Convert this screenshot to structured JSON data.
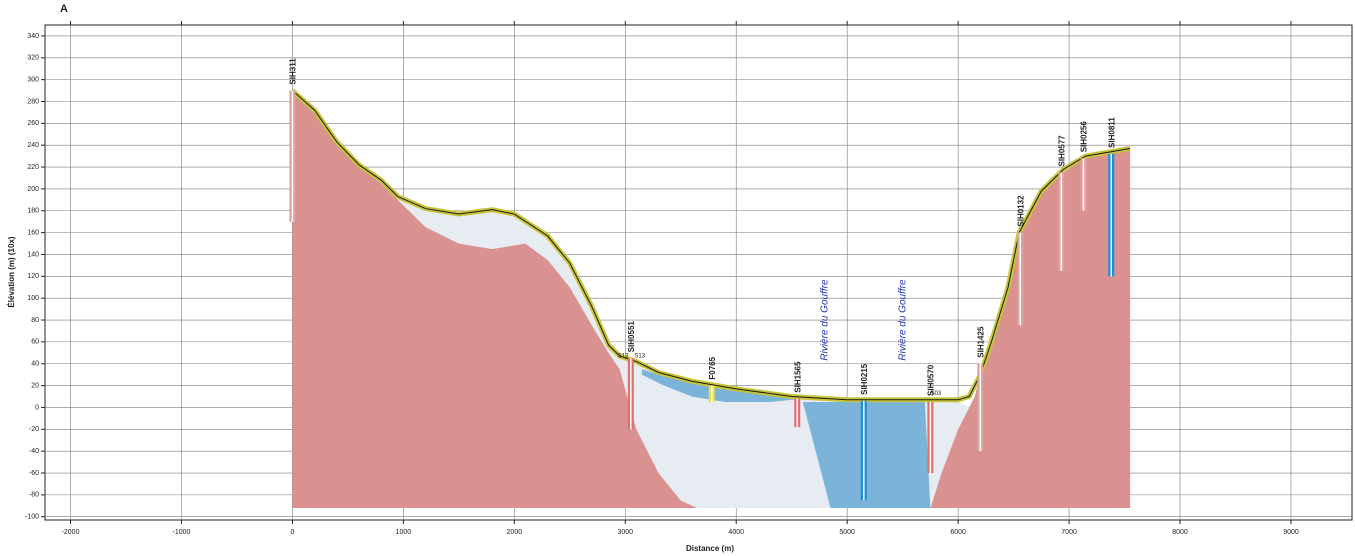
{
  "chart_data": {
    "type": "section",
    "title": "A",
    "x_label": "Distance (m)",
    "y_label": "Élévation (m) (10x)",
    "xlim": [
      -2230,
      9550
    ],
    "ylim": [
      -103,
      350
    ],
    "xticks": [
      -2000,
      -1000,
      0,
      1000,
      2000,
      3000,
      4000,
      5000,
      6000,
      7000,
      8000,
      9000
    ],
    "yticks": [
      -100,
      -80,
      -60,
      -40,
      -20,
      0,
      20,
      40,
      60,
      80,
      100,
      120,
      140,
      160,
      180,
      200,
      220,
      240,
      260,
      280,
      300,
      320,
      340
    ],
    "grid": true,
    "layers": [
      {
        "color": "#d9928f",
        "x": [
          0,
          200,
          400,
          600,
          800,
          950,
          1000,
          1200,
          1500,
          1800,
          2100,
          2300,
          2500,
          2700,
          2850,
          2950,
          3100,
          3300,
          3500,
          3650,
          0
        ],
        "y": [
          290,
          270,
          240,
          220,
          205,
          190,
          185,
          165,
          150,
          145,
          150,
          135,
          110,
          75,
          50,
          35,
          -20,
          -60,
          -85,
          -92,
          -92
        ]
      },
      {
        "color": "#d9928f",
        "x": [
          5750,
          5850,
          6000,
          6150,
          6250,
          6400,
          6550,
          6750,
          6950,
          7150,
          7550,
          7550
        ],
        "y": [
          -92,
          -60,
          -20,
          10,
          50,
          100,
          160,
          195,
          215,
          228,
          235,
          -92
        ]
      },
      {
        "color": "#e6ecf1",
        "x": [
          950,
          1200,
          1500,
          1800,
          2000,
          2300,
          2500,
          2700,
          2850,
          2950,
          3100,
          3300,
          3600,
          4000,
          4500,
          5000,
          5500,
          6000,
          6100,
          6150,
          6000,
          5850,
          5750,
          3650,
          3500,
          3300,
          3100,
          2950,
          2850,
          2700,
          2500,
          2300,
          2100,
          1800,
          1500,
          1200,
          1000
        ],
        "y": [
          190,
          180,
          175,
          180,
          175,
          155,
          130,
          90,
          55,
          45,
          40,
          30,
          22,
          15,
          8,
          5,
          5,
          5,
          0,
          10,
          -20,
          -60,
          -92,
          -92,
          -85,
          -60,
          -20,
          35,
          50,
          75,
          110,
          135,
          150,
          145,
          150,
          165,
          185
        ]
      },
      {
        "color": "#7cb3d8",
        "x": [
          3150,
          3300,
          3600,
          4000,
          4500,
          4600,
          4300,
          3900,
          3600,
          3350,
          3150
        ],
        "y": [
          35,
          30,
          22,
          18,
          12,
          8,
          5,
          5,
          10,
          20,
          30
        ]
      },
      {
        "color": "#7cb3d8",
        "x": [
          4600,
          5700,
          5750,
          4850
        ],
        "y": [
          5,
          5,
          -92,
          -92
        ]
      }
    ],
    "surface": {
      "color": "#c8c43a",
      "x": [
        0,
        200,
        400,
        600,
        800,
        950,
        1200,
        1500,
        1800,
        2000,
        2300,
        2500,
        2700,
        2850,
        2950,
        3100,
        3300,
        3600,
        4000,
        4500,
        5000,
        5500,
        6000,
        6100,
        6200,
        6300,
        6450,
        6550,
        6750,
        6950,
        7150,
        7550
      ],
      "y": [
        290,
        272,
        243,
        222,
        208,
        193,
        182,
        177,
        181,
        177,
        157,
        132,
        92,
        57,
        47,
        42,
        32,
        24,
        17,
        10,
        7,
        7,
        7,
        10,
        30,
        60,
        110,
        160,
        198,
        218,
        230,
        237
      ]
    },
    "boreholes": [
      {
        "label": "SIH311",
        "x": 0,
        "top": 290,
        "bottom": 170,
        "color": "#e0a0a0"
      },
      {
        "label": "SIH0551",
        "x": 3050,
        "top": 45,
        "bottom": -20,
        "color": "#e07070"
      },
      {
        "label": "F0765",
        "x": 3780,
        "top": 20,
        "bottom": 5,
        "color": "#e8e04a"
      },
      {
        "label": "SIH1565",
        "x": 4550,
        "top": 8,
        "bottom": -18,
        "color": "#e07070"
      },
      {
        "label": "SIH0215",
        "x": 5150,
        "top": 6,
        "bottom": -85,
        "color": "#1b8fd6"
      },
      {
        "label": "SIH0570",
        "x": 5750,
        "top": 5,
        "bottom": -60,
        "color": "#e07070"
      },
      {
        "label": "SIH1425",
        "x": 6200,
        "top": 40,
        "bottom": -40,
        "color": "#e0a0a0"
      },
      {
        "label": "SIH0132",
        "x": 6560,
        "top": 160,
        "bottom": 75,
        "color": "#e0a0a0"
      },
      {
        "label": "SIH0577",
        "x": 6930,
        "top": 215,
        "bottom": 125,
        "color": "#e0a0a0"
      },
      {
        "label": "SIH0256",
        "x": 7130,
        "top": 228,
        "bottom": 180,
        "color": "#e0a0a0"
      },
      {
        "label": "SIH0811",
        "x": 7380,
        "top": 232,
        "bottom": 120,
        "color": "#1b8fd6"
      }
    ],
    "annotations": [
      {
        "text": "Rivière du Gouffre",
        "x": 4800,
        "y": 80,
        "color": "#2233aa",
        "rotate": true
      },
      {
        "text": "Rivière du Gouffre",
        "x": 5500,
        "y": 80,
        "color": "#2233aa",
        "rotate": true
      },
      {
        "text": "S13",
        "x": 2980,
        "y": 47,
        "color": "#222222",
        "rotate": false
      },
      {
        "text": "S13",
        "x": 3130,
        "y": 47,
        "color": "#222222",
        "rotate": false
      },
      {
        "text": "S03",
        "x": 5800,
        "y": 13,
        "color": "#222222",
        "rotate": false
      }
    ]
  }
}
